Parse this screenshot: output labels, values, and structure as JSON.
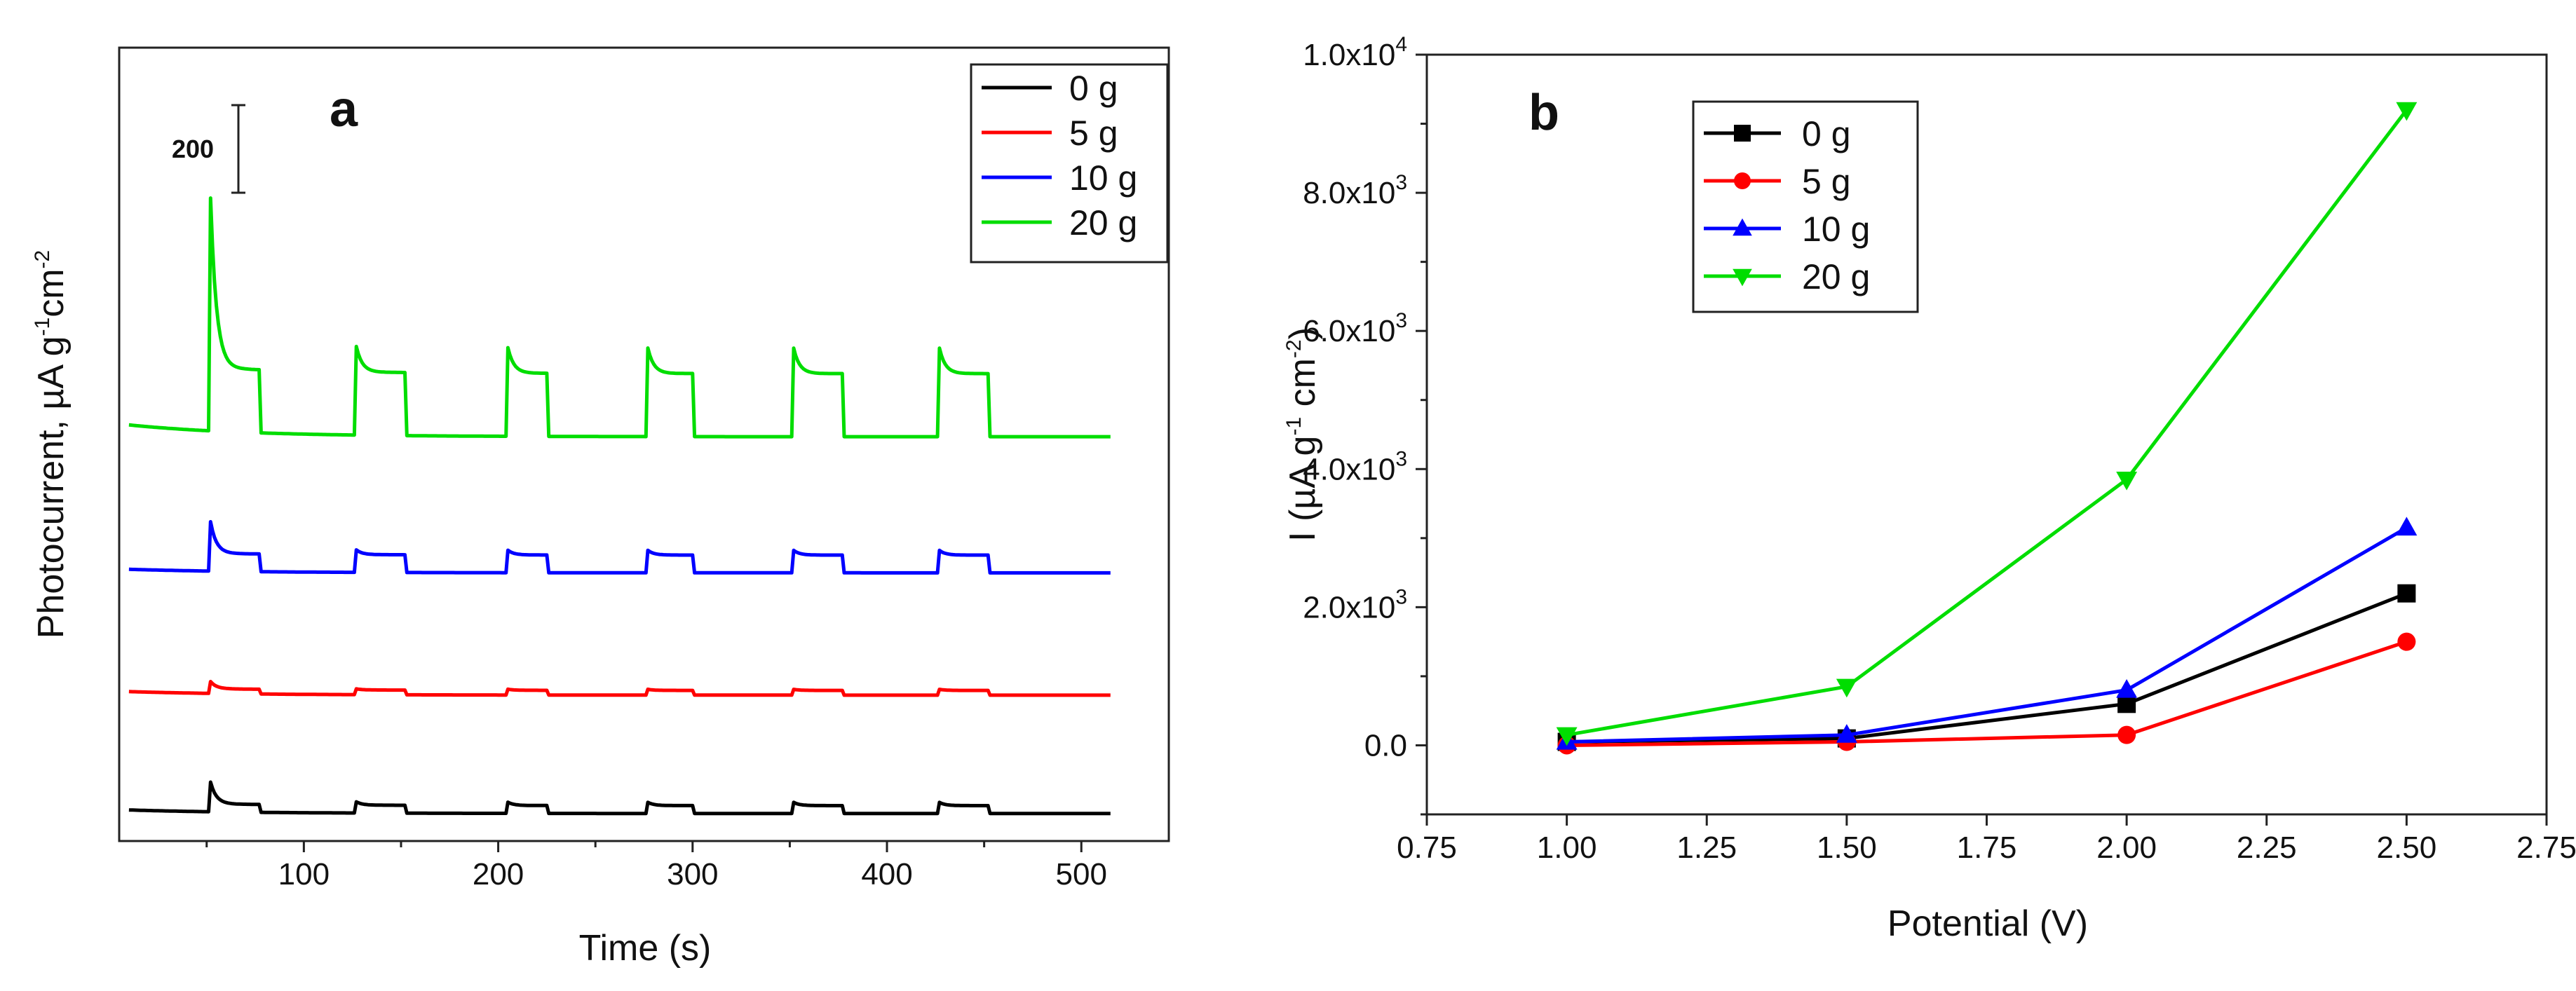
{
  "chart_data": [
    {
      "panel": "a",
      "type": "line",
      "xlabel": "Time (s)",
      "ylabel": "Photocurrent, µA g",
      "ylabel_sup1": "-1",
      "ylabel_mid": "cm",
      "ylabel_sup2": "-2",
      "xlim": [
        5,
        545
      ],
      "xticks": [
        100,
        200,
        300,
        400,
        500
      ],
      "scale_bar_label": "200",
      "scale_bar_value": 200,
      "y_range_units": [
        0,
        1780
      ],
      "light_intervals": [
        [
          52,
          77
        ],
        [
          127,
          152
        ],
        [
          205,
          225
        ],
        [
          277,
          300
        ],
        [
          352,
          377
        ],
        [
          427,
          452
        ]
      ],
      "series": [
        {
          "name": "0 g",
          "color": "#000000",
          "baseline": 20,
          "step": 20,
          "overshoot": 55
        },
        {
          "name": "5 g",
          "color": "#ff0000",
          "baseline": 320,
          "step": 12,
          "overshoot": 18
        },
        {
          "name": "10 g",
          "color": "#0000ff",
          "baseline": 630,
          "step": 45,
          "overshoot": 80
        },
        {
          "name": "20 g",
          "color": "#00dd00",
          "baseline": 975,
          "step": 160,
          "overshoot": 430
        }
      ],
      "legend": [
        "0 g",
        "5 g",
        "10 g",
        "20 g"
      ]
    },
    {
      "panel": "b",
      "type": "line",
      "xlabel": "Potential (V)",
      "ylabel": "I (µA g",
      "ylabel_sup1": "-1",
      "ylabel_mid": " cm",
      "ylabel_sup2": "-2",
      "ylabel_end": ")",
      "xlim": [
        0.75,
        2.75
      ],
      "ylim": [
        -1000,
        10000
      ],
      "xticks": [
        "0.75",
        "1.00",
        "1.25",
        "1.50",
        "1.75",
        "2.00",
        "2.25",
        "2.50",
        "2.75"
      ],
      "yticks": [
        {
          "value": 0,
          "mantissa": "0.0",
          "exp": ""
        },
        {
          "value": 2000,
          "mantissa": "2.0x10",
          "exp": "3"
        },
        {
          "value": 4000,
          "mantissa": "4.0x10",
          "exp": "3"
        },
        {
          "value": 6000,
          "mantissa": "6.0x10",
          "exp": "3"
        },
        {
          "value": 8000,
          "mantissa": "8.0x10",
          "exp": "3"
        },
        {
          "value": 10000,
          "mantissa": "1.0x10",
          "exp": "4"
        }
      ],
      "x": [
        1.0,
        1.5,
        2.0,
        2.5
      ],
      "series": [
        {
          "name": "0 g",
          "color": "#000000",
          "marker": "square",
          "values": [
            50,
            100,
            600,
            2200
          ]
        },
        {
          "name": "5 g",
          "color": "#ff0000",
          "marker": "circle",
          "values": [
            0,
            50,
            150,
            1500
          ]
        },
        {
          "name": "10 g",
          "color": "#0000ff",
          "marker": "triangle-up",
          "values": [
            50,
            150,
            800,
            3150
          ]
        },
        {
          "name": "20 g",
          "color": "#00dd00",
          "marker": "triangle-down",
          "values": [
            150,
            850,
            3850,
            9200
          ]
        }
      ],
      "legend": [
        "0 g",
        "5 g",
        "10 g",
        "20 g"
      ]
    }
  ]
}
